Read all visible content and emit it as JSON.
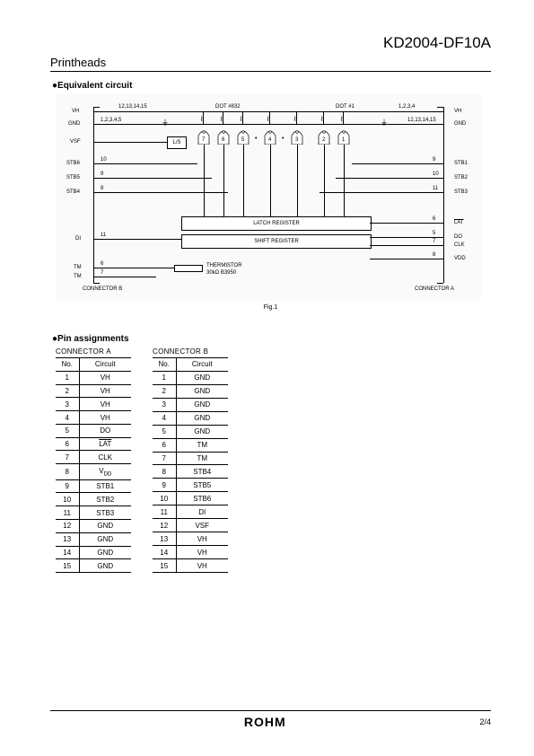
{
  "header": {
    "part_number": "KD2004-DF10A",
    "section": "Printheads"
  },
  "circuit": {
    "heading": "●Equivalent circuit",
    "figure_label": "Fig.1",
    "left_labels": [
      "VH",
      "GND",
      "VSF",
      "STB6",
      "STB5",
      "STB4",
      "DI",
      "TM",
      "TM"
    ],
    "right_labels": [
      "VH",
      "GND",
      "STB1",
      "STB2",
      "STB3",
      "LAT",
      "DO",
      "CLK",
      "VDD"
    ],
    "top_labels": {
      "l1": "12,13,14,15",
      "dot832": "DOT #832",
      "dot1": "DOT #1",
      "r1": "1,2,3,4"
    },
    "pin_nums_left": [
      "1,2,3,4,5",
      "10",
      "9",
      "8",
      "7",
      "6",
      "",
      "",
      "11"
    ],
    "pin_nums_right": [
      "9",
      "10",
      "11",
      "6",
      "5",
      "7",
      "8"
    ],
    "ls_label": "L/S",
    "gates": [
      "7",
      "6",
      "5",
      "4",
      "3",
      "2",
      "1"
    ],
    "latch": "LATCH REGISTER",
    "shift": "SHIFT REGISTER",
    "therm1": "THERMISTOR",
    "therm2": "30kΩ B3950",
    "conn_b": "CONNECTOR B",
    "conn_a": "CONNECTOR A"
  },
  "pins": {
    "heading": "●Pin assignments",
    "col_no": "No.",
    "col_ckt": "Circuit",
    "a_caption": "CONNECTOR  A",
    "b_caption": "CONNECTOR  B",
    "a": [
      {
        "n": "1",
        "c": "VH"
      },
      {
        "n": "2",
        "c": "VH"
      },
      {
        "n": "3",
        "c": "VH"
      },
      {
        "n": "4",
        "c": "VH"
      },
      {
        "n": "5",
        "c": "DO"
      },
      {
        "n": "6",
        "c": "LAT"
      },
      {
        "n": "7",
        "c": "CLK"
      },
      {
        "n": "8",
        "c": "VDD"
      },
      {
        "n": "9",
        "c": "STB1"
      },
      {
        "n": "10",
        "c": "STB2"
      },
      {
        "n": "11",
        "c": "STB3"
      },
      {
        "n": "12",
        "c": "GND"
      },
      {
        "n": "13",
        "c": "GND"
      },
      {
        "n": "14",
        "c": "GND"
      },
      {
        "n": "15",
        "c": "GND"
      }
    ],
    "b": [
      {
        "n": "1",
        "c": "GND"
      },
      {
        "n": "2",
        "c": "GND"
      },
      {
        "n": "3",
        "c": "GND"
      },
      {
        "n": "4",
        "c": "GND"
      },
      {
        "n": "5",
        "c": "GND"
      },
      {
        "n": "6",
        "c": "TM"
      },
      {
        "n": "7",
        "c": "TM"
      },
      {
        "n": "8",
        "c": "STB4"
      },
      {
        "n": "9",
        "c": "STB5"
      },
      {
        "n": "10",
        "c": "STB6"
      },
      {
        "n": "11",
        "c": "DI"
      },
      {
        "n": "12",
        "c": "VSF"
      },
      {
        "n": "13",
        "c": "VH"
      },
      {
        "n": "14",
        "c": "VH"
      },
      {
        "n": "15",
        "c": "VH"
      }
    ]
  },
  "footer": {
    "logo": "ROHM",
    "page": "2/4"
  }
}
